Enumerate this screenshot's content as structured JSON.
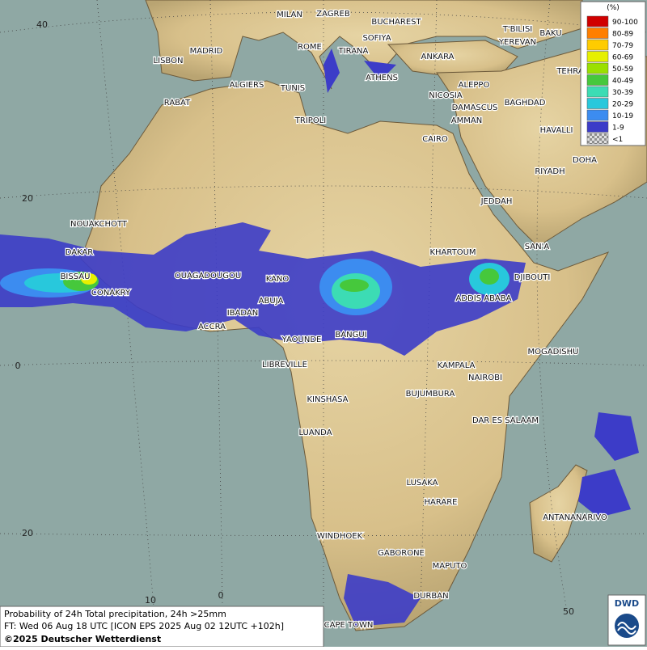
{
  "map": {
    "cities": [
      "MILAN",
      "ZAGREB",
      "BUCHAREST",
      "T'BILISI",
      "BAKU",
      "YEREVAN",
      "MADRID",
      "ROME",
      "SOFIYA",
      "TIRANA",
      "ANKARA",
      "TEHRA",
      "LISBON",
      "ATHENS",
      "ALGIERS",
      "TUNIS",
      "ALEPPO",
      "RABAT",
      "NICOSIA",
      "BAGHDAD",
      "DAMASCUS",
      "AMMAN",
      "TRIPOLI",
      "HAVALLI",
      "CAIRO",
      "DOHA",
      "RIYADH",
      "JEDDAH",
      "NOUAKCHOTT",
      "SAN'A",
      "DAKAR",
      "KHARTOUM",
      "BISSAU",
      "OUAGADOUGOU",
      "KANO",
      "DJIBOUTI",
      "CONAKRY",
      "ABUJA",
      "ADDIS ABABA",
      "IBADAN",
      "ACCRA",
      "YAOUNDE",
      "BANGUI",
      "MOGADISHU",
      "LIBREVILLE",
      "KAMPALA",
      "NAIROBI",
      "KINSHASA",
      "BUJUMBURA",
      "DAR ES SALAAM",
      "LUANDA",
      "LUSAKA",
      "HARARE",
      "ANTANANARIVO",
      "WINDHOEK",
      "GABORONE",
      "MAPUTO",
      "DURBAN",
      "CAPE TOWN"
    ],
    "grid_labels": [
      "40",
      "20",
      "0",
      "20",
      "10",
      "0",
      "50"
    ]
  },
  "legend": {
    "unit": "(%)",
    "items": [
      {
        "label": "90-100",
        "color": "#d00000"
      },
      {
        "label": "80-89",
        "color": "#ff7f00"
      },
      {
        "label": "70-79",
        "color": "#ffcc00"
      },
      {
        "label": "60-69",
        "color": "#e6f000"
      },
      {
        "label": "50-59",
        "color": "#9be000"
      },
      {
        "label": "40-49",
        "color": "#46c83c"
      },
      {
        "label": "30-39",
        "color": "#3cdcb4"
      },
      {
        "label": "20-29",
        "color": "#28c8dc"
      },
      {
        "label": "10-19",
        "color": "#3c8cf0"
      },
      {
        "label": "1-9",
        "color": "#3c3cc8"
      },
      {
        "label": "<1",
        "color": "#c0c0c0"
      }
    ]
  },
  "footer": {
    "lines": [
      "Probability of 24h Total precipitation, 24h >25mm",
      "FT: Wed 06 Aug 18 UTC [ICON EPS 2025 Aug 02 12UTC +102h]",
      "©2025 Deutscher Wetterdienst"
    ]
  },
  "logo": "DWD"
}
